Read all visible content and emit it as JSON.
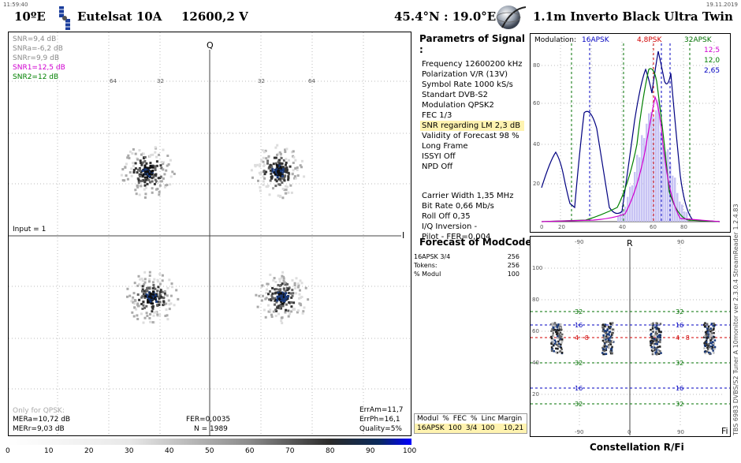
{
  "top": {
    "time": "11:59:40",
    "date": "19.11.2019"
  },
  "header": {
    "orbital": "10ºE",
    "satellite": "Eutelsat 10A",
    "freq_pol": "12600,2  V",
    "location": "45.4°N : 19.0°E",
    "dish": "1.1m Inverto Black Ultra Twin"
  },
  "constellation": {
    "q_label": "Q",
    "i_label": "I",
    "input": "Input = 1",
    "snr_lines": [
      {
        "text": "SNR=9,4 dB",
        "color": "#8a8a8a"
      },
      {
        "text": "SNRa=-6,2 dB",
        "color": "#8a8a8a"
      },
      {
        "text": "SNRr=9,9 dB",
        "color": "#8a8a8a"
      },
      {
        "text": "SNR1=12,5 dB",
        "color": "#d000d0"
      },
      {
        "text": "SNR2=12 dB",
        "color": "#008000"
      }
    ],
    "only_qpsk": "Only for QPSK:",
    "mera": "MERa=10,72 dB",
    "merr": "MERr=9,03 dB",
    "fer": "FER=0,0035",
    "n": "N = 1989",
    "erram": "ErrAm=11,7",
    "errph": "ErrPh=16,1",
    "quality": "Quality=5%",
    "grid_labels": [
      "64",
      "32",
      "32",
      "64"
    ]
  },
  "params": {
    "title": "Parametrs of Signal :",
    "lines": [
      "Frequency  12600200 kHz",
      "Polarization   V/R (13V)",
      "Symbol Rate  1000 kS/s",
      "Standart  DVB-S2",
      "Modulation   QPSK2",
      "FEC  1/3"
    ],
    "highlight": "SNR regarding LM  2,3 dB",
    "lines2": [
      "Validity of Forecast  98 %",
      "Long  Frame",
      "ISSYI  Off",
      "NPD   Off"
    ],
    "lines3": [
      "Carrier Width    1,35 MHz",
      "Bit Rate   0,66 Mb/s",
      "Roll Off   0,35",
      "I/Q Inversion    -",
      "Pilot    -       FER=0,004"
    ]
  },
  "forecast": {
    "title": "Forecast of ModCode",
    "rows": [
      {
        "k": "16APSK 3/4",
        "v": "256"
      },
      {
        "k": "Tokens:",
        "v": "256"
      },
      {
        "k": "% Modul",
        "v": "100"
      }
    ]
  },
  "modtable": {
    "headers": [
      "Modul",
      "%",
      "FEC",
      "%",
      "Linc Margin"
    ],
    "row": [
      "16APSK",
      "100",
      "3/4",
      "100",
      "10,21"
    ]
  },
  "histogram": {
    "modulation": "Modulation:",
    "m16": "16APSK",
    "m4": "4,8PSK",
    "m32": "32APSK",
    "v1": "12,5",
    "v2": "12,0",
    "v3": "2,65",
    "yticks": [
      "80",
      "60",
      "40",
      "20"
    ],
    "xticks": [
      "0",
      "20",
      "40",
      "60",
      "80"
    ]
  },
  "polar": {
    "r_label": "R",
    "fi_label": "Fi",
    "xticks_top": [
      "-90",
      "90"
    ],
    "xticks_bot": [
      "-90",
      "0",
      "90"
    ],
    "yticks": [
      "100",
      "80",
      "60",
      "40",
      "20"
    ],
    "lines": [
      {
        "label": "32",
        "color": "#007000"
      },
      {
        "label": "16",
        "color": "#0000c0"
      },
      {
        "label": "4 · 8",
        "color": "#d00000"
      },
      {
        "label": "32",
        "color": "#007000"
      },
      {
        "label": "16",
        "color": "#0000c0"
      },
      {
        "label": "32",
        "color": "#007000"
      }
    ]
  },
  "scale": {
    "ticks": [
      "0",
      "10",
      "20",
      "30",
      "40",
      "50",
      "60",
      "70",
      "80",
      "90",
      "100"
    ]
  },
  "footer": {
    "title": "Constellation  R/Fi"
  },
  "side_text": "TBS 6983  DVBS/S2  Tuner A    10monitor  ver 2.3.0.4    StreamReader 1.2.4.83"
}
